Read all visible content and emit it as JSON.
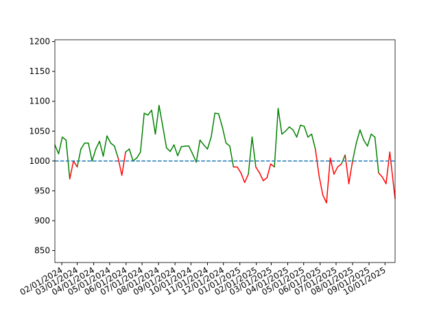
{
  "chart_data": {
    "type": "threshold-line",
    "x": [
      "2024-01-19",
      "2024-01-26",
      "2024-02-02",
      "2024-02-09",
      "2024-02-16",
      "2024-02-23",
      "2024-03-01",
      "2024-03-08",
      "2024-03-15",
      "2024-03-22",
      "2024-03-29",
      "2024-04-05",
      "2024-04-12",
      "2024-04-19",
      "2024-04-26",
      "2024-05-03",
      "2024-05-10",
      "2024-05-17",
      "2024-05-24",
      "2024-05-31",
      "2024-06-07",
      "2024-06-14",
      "2024-06-21",
      "2024-06-28",
      "2024-07-05",
      "2024-07-12",
      "2024-07-19",
      "2024-07-26",
      "2024-08-02",
      "2024-08-09",
      "2024-08-16",
      "2024-08-23",
      "2024-08-30",
      "2024-09-06",
      "2024-09-13",
      "2024-09-20",
      "2024-09-27",
      "2024-10-04",
      "2024-10-11",
      "2024-10-18",
      "2024-10-25",
      "2024-11-01",
      "2024-11-08",
      "2024-11-15",
      "2024-11-22",
      "2024-11-29",
      "2024-12-06",
      "2024-12-13",
      "2024-12-20",
      "2024-12-27",
      "2025-01-03",
      "2025-01-10",
      "2025-01-17",
      "2025-01-24",
      "2025-01-31",
      "2025-02-07",
      "2025-02-14",
      "2025-02-21",
      "2025-02-28",
      "2025-03-07",
      "2025-03-14",
      "2025-03-21",
      "2025-03-28",
      "2025-04-04",
      "2025-04-11",
      "2025-04-18",
      "2025-04-25",
      "2025-05-02",
      "2025-05-09",
      "2025-05-16",
      "2025-05-23",
      "2025-05-30",
      "2025-06-06",
      "2025-06-13",
      "2025-06-20",
      "2025-06-27",
      "2025-07-04",
      "2025-07-11",
      "2025-07-18",
      "2025-07-25",
      "2025-08-01",
      "2025-08-08",
      "2025-08-15",
      "2025-08-22",
      "2025-08-29",
      "2025-09-05",
      "2025-09-12",
      "2025-09-19",
      "2025-09-26",
      "2025-10-03",
      "2025-10-10",
      "2025-10-17",
      "2025-10-20"
    ],
    "values": [
      1027,
      1012,
      1040,
      1035,
      970,
      1000,
      990,
      1020,
      1030,
      1030,
      1000,
      1020,
      1033,
      1008,
      1042,
      1030,
      1025,
      1005,
      976,
      1015,
      1020,
      1000,
      1005,
      1015,
      1080,
      1077,
      1085,
      1045,
      1093,
      1058,
      1022,
      1016,
      1027,
      1009,
      1024,
      1025,
      1025,
      1012,
      998,
      1035,
      1027,
      1020,
      1040,
      1080,
      1079,
      1057,
      1030,
      1025,
      990,
      990,
      980,
      964,
      978,
      1040,
      990,
      980,
      967,
      972,
      995,
      990,
      1088,
      1045,
      1050,
      1057,
      1052,
      1040,
      1060,
      1058,
      1040,
      1045,
      1020,
      975,
      943,
      930,
      1005,
      978,
      990,
      995,
      1010,
      962,
      1000,
      1030,
      1052,
      1035,
      1025,
      1045,
      1040,
      980,
      973,
      962,
      1015,
      960,
      937
    ],
    "threshold": 1000,
    "color_above": "#008000",
    "color_below": "#ff0000",
    "threshold_color": "#1f77b4",
    "threshold_style": "dashed",
    "xlim": [
      "2024-01-19",
      "2025-10-20"
    ],
    "ylim": [
      830,
      1203
    ],
    "yticks": [
      850,
      900,
      950,
      1000,
      1050,
      1100,
      1150,
      1200
    ],
    "xticks": [
      {
        "value": "2024-02-01",
        "label": "02/01/2024"
      },
      {
        "value": "2024-03-01",
        "label": "03/01/2024"
      },
      {
        "value": "2024-04-01",
        "label": "04/01/2024"
      },
      {
        "value": "2024-05-01",
        "label": "05/01/2024"
      },
      {
        "value": "2024-06-01",
        "label": "06/01/2024"
      },
      {
        "value": "2024-07-01",
        "label": "07/01/2024"
      },
      {
        "value": "2024-08-01",
        "label": "08/01/2024"
      },
      {
        "value": "2024-09-01",
        "label": "09/01/2024"
      },
      {
        "value": "2024-10-01",
        "label": "10/01/2024"
      },
      {
        "value": "2024-11-01",
        "label": "11/01/2024"
      },
      {
        "value": "2024-12-01",
        "label": "12/01/2024"
      },
      {
        "value": "2025-01-01",
        "label": "01/01/2025"
      },
      {
        "value": "2025-02-01",
        "label": "02/01/2025"
      },
      {
        "value": "2025-03-01",
        "label": "03/01/2025"
      },
      {
        "value": "2025-04-01",
        "label": "04/01/2025"
      },
      {
        "value": "2025-05-01",
        "label": "05/01/2025"
      },
      {
        "value": "2025-06-01",
        "label": "06/01/2025"
      },
      {
        "value": "2025-07-01",
        "label": "07/01/2025"
      },
      {
        "value": "2025-08-01",
        "label": "08/01/2025"
      },
      {
        "value": "2025-09-01",
        "label": "09/01/2025"
      },
      {
        "value": "2025-10-01",
        "label": "10/01/2025"
      }
    ]
  }
}
